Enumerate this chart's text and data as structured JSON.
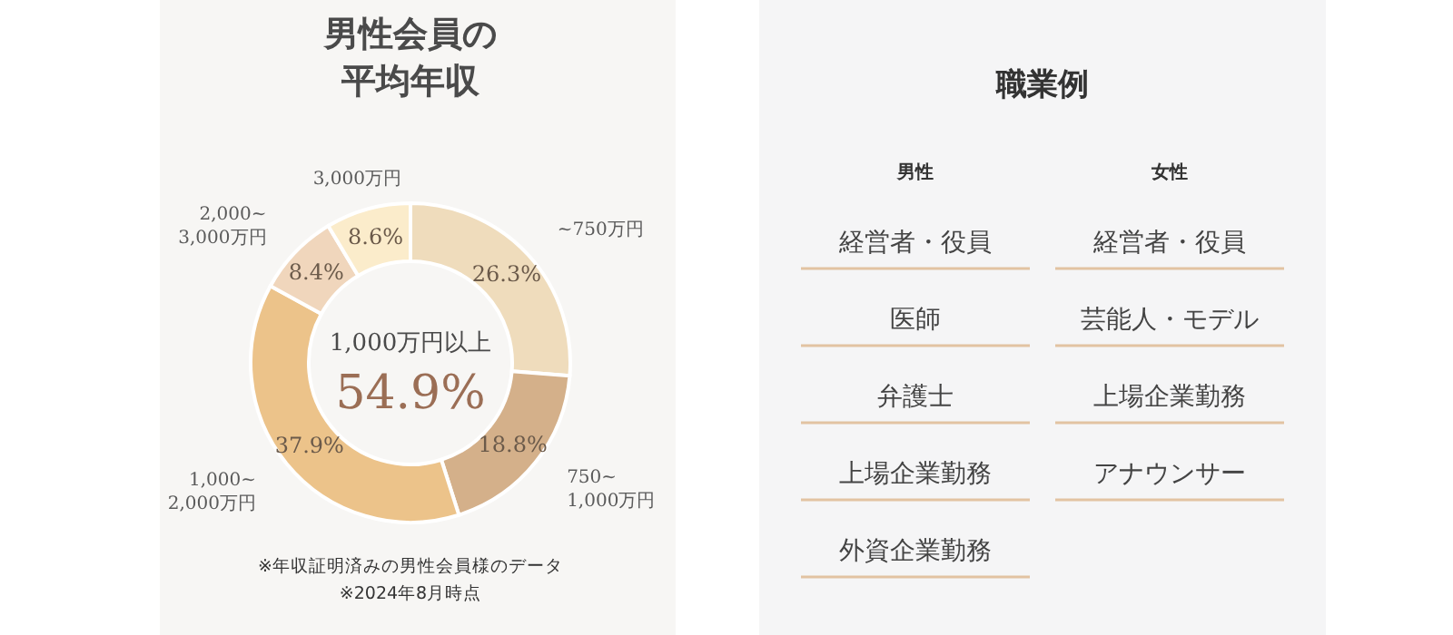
{
  "chart_data": [
    {
      "type": "donut",
      "title": "男性会員の平均年収",
      "categories": [
        "~750万円",
        "750~\n1,000万円",
        "1,000~\n2,000万円",
        "2,000~\n3,000万円",
        "3,000万円"
      ],
      "values": [
        26.3,
        18.8,
        37.9,
        8.4,
        8.6
      ],
      "value_labels": [
        "26.3%",
        "18.8%",
        "37.9%",
        "8.4%",
        "8.6%"
      ],
      "colors": [
        "#efdcbc",
        "#d4b08a",
        "#ecc38a",
        "#f0d6bc",
        "#fbeccb"
      ],
      "annotations": [
        "1,000万円以上",
        "54.9%",
        "※年収証明済みの男性会員様のデータ",
        "※2024年8月時点"
      ]
    },
    {
      "type": "other",
      "title": "職業例",
      "subtitle": "男性",
      "annotations": [
        "経営者・役員",
        "医師",
        "弁護士",
        "上場企業勤務",
        "外資企業勤務"
      ]
    },
    {
      "type": "other",
      "subtitle": "女性",
      "annotations": [
        "経営者・役員",
        "芸能人・モデル",
        "上場企業勤務",
        "アナウンサー"
      ]
    }
  ]
}
